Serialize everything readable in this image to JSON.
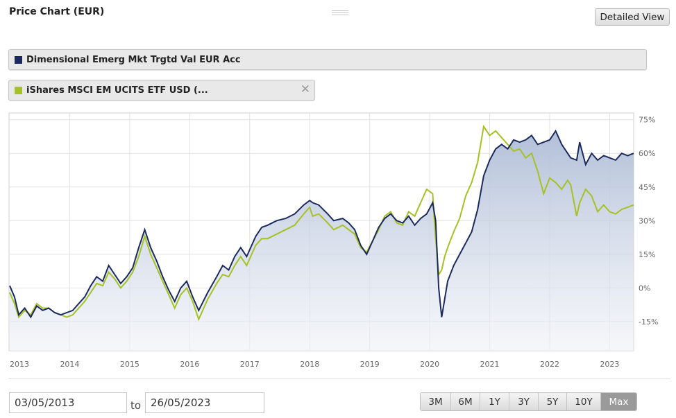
{
  "header": {
    "title": "Price Chart (EUR)",
    "detailed_view_label": "Detailed View"
  },
  "series_legend": [
    {
      "label": "Dimensional Emerg Mkt Trgtd Val EUR Acc",
      "color": "#1b2a5e",
      "removable": false
    },
    {
      "label": "iShares MSCI EM UCITS ETF USD (...",
      "color": "#a6c124",
      "removable": true,
      "close_icon": "close-icon"
    }
  ],
  "date_range": {
    "from": "03/05/2013",
    "to_label": "to",
    "to": "26/05/2023"
  },
  "range_buttons": [
    "3M",
    "6M",
    "1Y",
    "3Y",
    "5Y",
    "10Y",
    "Max"
  ],
  "active_range": "Max",
  "chart_data": {
    "type": "line",
    "x_unit": "year",
    "xlim": [
      2013.0,
      2023.4
    ],
    "ylim": [
      -28,
      78
    ],
    "y_ticks": [
      -15,
      0,
      15,
      30,
      45,
      60,
      75
    ],
    "y_tick_labels": [
      "-15%",
      "0%",
      "15%",
      "30%",
      "45%",
      "60%",
      "75%"
    ],
    "x_ticks": [
      2013,
      2014,
      2015,
      2016,
      2017,
      2018,
      2019,
      2020,
      2021,
      2022,
      2023
    ],
    "x_tick_labels": [
      "2013",
      "2014",
      "2015",
      "2016",
      "2017",
      "2018",
      "2019",
      "2020",
      "2021",
      "2022",
      "2023"
    ],
    "grid": true,
    "series": [
      {
        "name": "Dimensional Emerg Mkt Trgtd Val EUR Acc",
        "color": "#1b2a5e",
        "area_fill": true,
        "x": [
          2013.0,
          2013.08,
          2013.15,
          2013.25,
          2013.35,
          2013.45,
          2013.55,
          2013.65,
          2013.75,
          2013.85,
          2013.95,
          2014.05,
          2014.15,
          2014.25,
          2014.35,
          2014.45,
          2014.55,
          2014.65,
          2014.75,
          2014.85,
          2014.95,
          2015.05,
          2015.15,
          2015.25,
          2015.35,
          2015.45,
          2015.55,
          2015.65,
          2015.75,
          2015.85,
          2015.95,
          2016.05,
          2016.15,
          2016.3,
          2016.45,
          2016.55,
          2016.65,
          2016.75,
          2016.85,
          2016.95,
          2017.1,
          2017.2,
          2017.3,
          2017.45,
          2017.6,
          2017.75,
          2017.9,
          2018.0,
          2018.05,
          2018.15,
          2018.3,
          2018.4,
          2018.55,
          2018.65,
          2018.75,
          2018.85,
          2018.95,
          2019.05,
          2019.15,
          2019.25,
          2019.35,
          2019.45,
          2019.55,
          2019.65,
          2019.75,
          2019.85,
          2019.95,
          2020.05,
          2020.1,
          2020.15,
          2020.2,
          2020.25,
          2020.3,
          2020.4,
          2020.5,
          2020.6,
          2020.7,
          2020.8,
          2020.9,
          2021.0,
          2021.1,
          2021.2,
          2021.3,
          2021.4,
          2021.5,
          2021.6,
          2021.7,
          2021.8,
          2021.9,
          2022.0,
          2022.1,
          2022.2,
          2022.3,
          2022.35,
          2022.45,
          2022.5,
          2022.6,
          2022.7,
          2022.8,
          2022.9,
          2023.0,
          2023.1,
          2023.2,
          2023.3,
          2023.4
        ],
        "values": [
          1,
          -4,
          -12,
          -9,
          -13,
          -8,
          -10,
          -9,
          -11,
          -12,
          -11,
          -10,
          -7,
          -4,
          1,
          5,
          3,
          10,
          6,
          2,
          5,
          9,
          18,
          26,
          18,
          12,
          5,
          -1,
          -6,
          0,
          3,
          -4,
          -10,
          -2,
          5,
          10,
          8,
          14,
          18,
          14,
          23,
          27,
          28,
          30,
          31,
          33,
          37,
          39,
          38,
          37,
          33,
          30,
          31,
          29,
          26,
          19,
          15,
          21,
          27,
          31,
          33,
          30,
          29,
          32,
          28,
          31,
          33,
          38,
          30,
          0,
          -13,
          -5,
          3,
          10,
          15,
          20,
          25,
          35,
          50,
          57,
          62,
          64,
          62,
          66,
          65,
          66,
          68,
          64,
          65,
          66,
          70,
          64,
          60,
          58,
          57,
          65,
          55,
          60,
          57,
          59,
          58,
          57,
          60,
          59,
          60
        ]
      },
      {
        "name": "iShares MSCI EM UCITS ETF USD (...",
        "color": "#a6c124",
        "area_fill": false,
        "x": [
          2013.0,
          2013.08,
          2013.15,
          2013.25,
          2013.35,
          2013.45,
          2013.55,
          2013.65,
          2013.75,
          2013.85,
          2013.95,
          2014.05,
          2014.15,
          2014.25,
          2014.35,
          2014.45,
          2014.55,
          2014.65,
          2014.75,
          2014.85,
          2014.95,
          2015.05,
          2015.15,
          2015.25,
          2015.35,
          2015.45,
          2015.55,
          2015.65,
          2015.75,
          2015.85,
          2015.95,
          2016.05,
          2016.15,
          2016.3,
          2016.45,
          2016.55,
          2016.65,
          2016.75,
          2016.85,
          2016.95,
          2017.1,
          2017.2,
          2017.3,
          2017.45,
          2017.6,
          2017.75,
          2017.9,
          2018.0,
          2018.05,
          2018.15,
          2018.3,
          2018.4,
          2018.55,
          2018.65,
          2018.75,
          2018.85,
          2018.95,
          2019.05,
          2019.15,
          2019.25,
          2019.35,
          2019.45,
          2019.55,
          2019.65,
          2019.75,
          2019.85,
          2019.95,
          2020.05,
          2020.1,
          2020.15,
          2020.2,
          2020.25,
          2020.3,
          2020.4,
          2020.5,
          2020.6,
          2020.7,
          2020.8,
          2020.9,
          2021.0,
          2021.1,
          2021.2,
          2021.3,
          2021.4,
          2021.5,
          2021.6,
          2021.7,
          2021.8,
          2021.9,
          2022.0,
          2022.1,
          2022.2,
          2022.3,
          2022.35,
          2022.45,
          2022.5,
          2022.6,
          2022.7,
          2022.8,
          2022.9,
          2023.0,
          2023.1,
          2023.2,
          2023.3,
          2023.4
        ],
        "values": [
          -2,
          -7,
          -13,
          -10,
          -12,
          -7,
          -9,
          -9,
          -11,
          -12,
          -13,
          -12,
          -9,
          -6,
          -2,
          2,
          1,
          7,
          4,
          0,
          3,
          7,
          14,
          23,
          15,
          9,
          3,
          -3,
          -9,
          -3,
          0,
          -6,
          -14,
          -5,
          2,
          6,
          5,
          10,
          14,
          10,
          19,
          22,
          22,
          24,
          26,
          28,
          33,
          36,
          32,
          33,
          29,
          26,
          28,
          26,
          24,
          18,
          16,
          21,
          26,
          32,
          34,
          29,
          28,
          34,
          32,
          38,
          44,
          42,
          22,
          6,
          8,
          14,
          18,
          25,
          31,
          41,
          47,
          56,
          72,
          68,
          70,
          67,
          64,
          61,
          62,
          58,
          60,
          52,
          42,
          49,
          47,
          44,
          48,
          46,
          32,
          38,
          44,
          41,
          34,
          37,
          34,
          33,
          35,
          36,
          37
        ]
      }
    ]
  }
}
